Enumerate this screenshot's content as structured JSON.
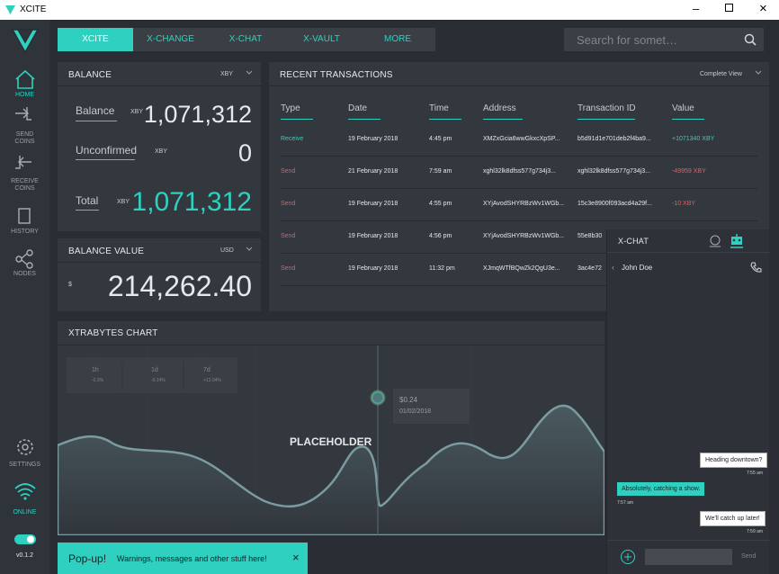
{
  "window": {
    "title": "XCITE"
  },
  "nav": {
    "tabs": [
      "XCITE",
      "X-CHANGE",
      "X-CHAT",
      "X-VAULT",
      "MORE"
    ],
    "search_placeholder": "Search for somet…"
  },
  "sidebar": {
    "items": [
      "HOME",
      "SEND COINS",
      "RECEIVE COINS",
      "HISTORY",
      "NODES"
    ],
    "settings": "SETTINGS",
    "status": "ONLINE",
    "version": "v0.1.2"
  },
  "balance": {
    "title": "BALANCE",
    "currency": "XBY",
    "rows": [
      {
        "label": "Balance",
        "unit": "XBY",
        "amount": "1,071,312"
      },
      {
        "label": "Unconfirmed",
        "unit": "XBY",
        "amount": "0"
      },
      {
        "label": "Total",
        "unit": "XBY",
        "amount": "1,071,312"
      }
    ]
  },
  "balance_value": {
    "title": "BALANCE VALUE",
    "currency": "USD",
    "symbol": "$",
    "amount": "214,262.40"
  },
  "transactions": {
    "title": "RECENT TRANSACTIONS",
    "view": "Complete View",
    "columns": [
      "Type",
      "Date",
      "Time",
      "Address",
      "Transaction ID",
      "Value"
    ],
    "rows": [
      {
        "color": "#2fd0c0",
        "cells": [
          "Receive",
          "19 February 2018",
          "4:45 pm",
          "XMZxGcia6wwGkxcXpSP...",
          "b5d91d1e701deb2f4ba9...",
          "+1071340 XBY"
        ]
      },
      {
        "color": "#e0605e",
        "cells": [
          "Send",
          "21 February 2018",
          "7:59 am",
          "xghl32lk8dfss577g734j3...",
          "xghl32lk8dfss577g734j3...",
          "-49959 XBY"
        ]
      },
      {
        "color": "#e0605e",
        "cells": [
          "Send",
          "19 February 2018",
          "4:55 pm",
          "XYjAvodSHYRBzWv1WGb...",
          "15c3e8900f093acd4a29f...",
          "-10 XBY"
        ]
      },
      {
        "color": "#e0605e",
        "cells": [
          "Send",
          "19 February 2018",
          "4:56 pm",
          "XYjAvodSHYRBzWv1WGb...",
          "55e8b30"
        ]
      },
      {
        "color": "#e0605e",
        "cells": [
          "Send",
          "19 February 2018",
          "11:32 pm",
          "XJmqWTfBQwZk2QgU3e...",
          "3ac4e72"
        ]
      }
    ]
  },
  "chart": {
    "title": "XTRABYTES CHART",
    "stats": [
      {
        "period": "1h",
        "change": "-0.3%"
      },
      {
        "period": "1d",
        "change": "-0.14%"
      },
      {
        "period": "7d",
        "change": "+12.04%"
      }
    ],
    "tooltip": {
      "price": "$0.24",
      "date": "01/02/2018"
    },
    "placeholder": "PLACEHOLDER"
  },
  "chat": {
    "title": "X-CHAT",
    "contact": "John Doe",
    "messages": [
      {
        "text": "Heading downtown?",
        "time": "7:55 am"
      },
      {
        "text": "Absolutely, catching a show.",
        "time": "7:57 am"
      },
      {
        "text": "We'll catch up later!",
        "time": "7:59 am"
      }
    ],
    "send": "Send"
  },
  "popup": {
    "title": "Pop-up!",
    "message": "Warnings, messages and other stuff here!"
  }
}
